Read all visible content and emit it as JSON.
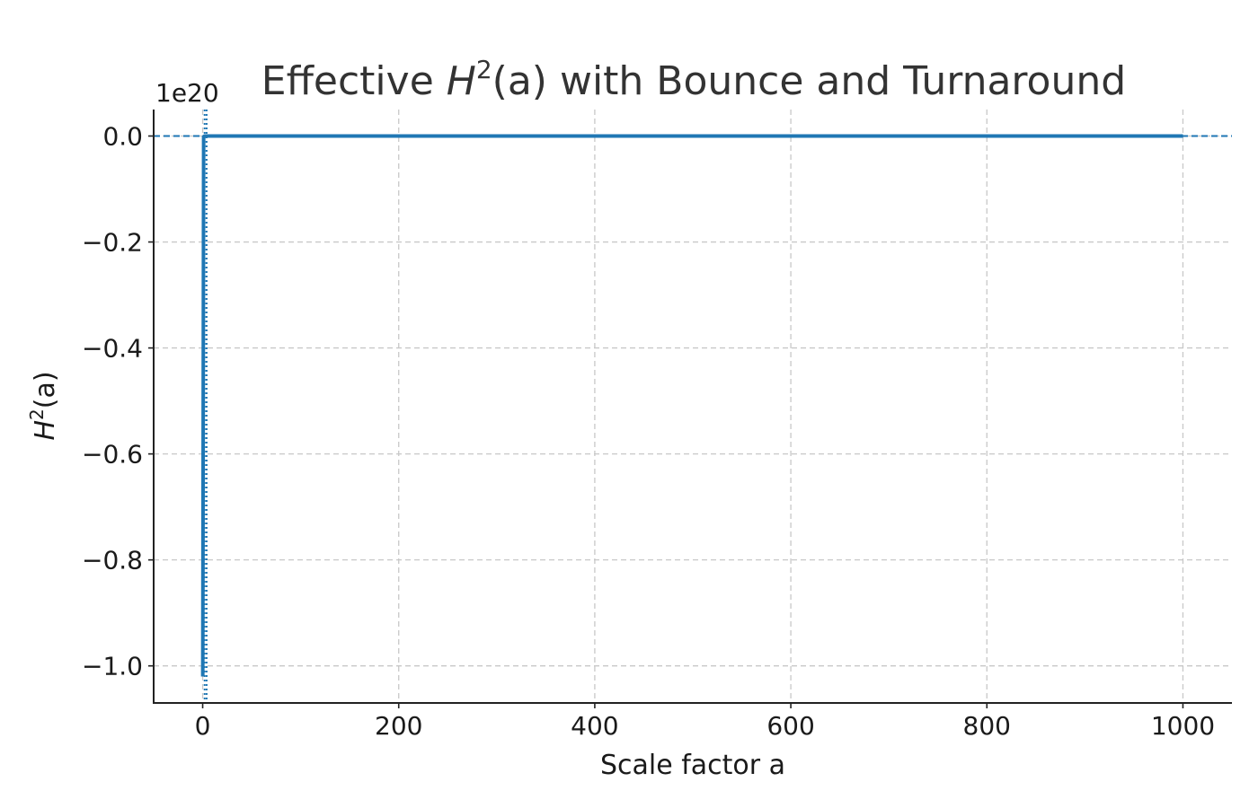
{
  "chart_data": {
    "type": "line",
    "title_prefix": "Effective ",
    "title_math_var": "H",
    "title_math_sup": "2",
    "title_math_arg": "(a)",
    "title_suffix": " with Bounce and Turnaround",
    "xlabel": "Scale factor a",
    "ylabel_var": "H",
    "ylabel_sup": "2",
    "ylabel_arg": "(a)",
    "y_offset_label": "1e20",
    "xlim": [
      -50,
      1050
    ],
    "ylim": [
      -1.07,
      0.05
    ],
    "x_ticks": [
      0,
      200,
      400,
      600,
      800,
      1000
    ],
    "x_tick_labels": [
      "0",
      "200",
      "400",
      "600",
      "800",
      "1000"
    ],
    "y_ticks": [
      0.0,
      -0.2,
      -0.4,
      -0.6,
      -0.8,
      -1.0
    ],
    "y_tick_labels": [
      "0.0",
      "−0.2",
      "−0.4",
      "−0.6",
      "−0.8",
      "−1.0"
    ],
    "grid": true,
    "line_color": "#1f77b4",
    "series": [
      {
        "x": [
          0.1,
          1,
          2,
          10,
          100,
          200,
          400,
          600,
          800,
          1000
        ],
        "y": [
          -1.02,
          -0.001,
          0,
          0,
          0,
          0,
          0,
          0,
          0,
          0
        ]
      }
    ],
    "reference_lines": {
      "horizontal_dashed_y": 0,
      "vertical_dotted_x": [
        2,
        4
      ]
    }
  }
}
